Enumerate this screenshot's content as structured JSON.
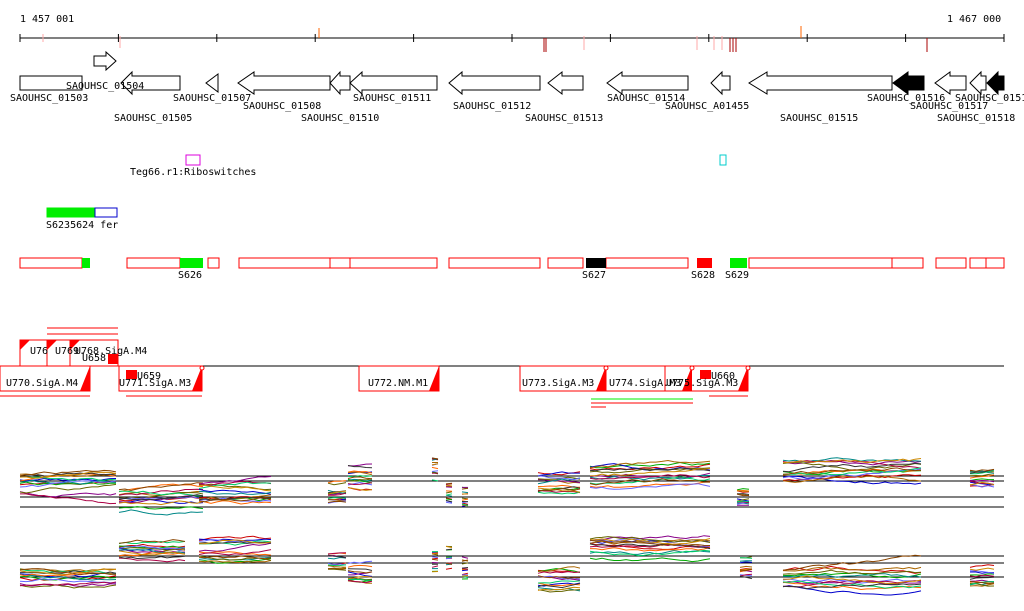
{
  "coords": {
    "start": "1 457 001",
    "end": "1 467 000"
  },
  "colors": {
    "axis": "#000000",
    "red": "#ff0000",
    "dark_red": "#aa0000",
    "pale_red": "#ffaaaa",
    "orange": "#ff6600",
    "green": "#00ee00",
    "blue": "#0000cc",
    "magenta": "#dd00dd",
    "cyan": "#00cccc",
    "black": "#000000"
  },
  "genes": [
    {
      "name": "SAOUHSC_01503",
      "strand": "none",
      "label_row": 1,
      "fill": "white"
    },
    {
      "name": "SAOUHSC_01504",
      "strand": "+",
      "label_row": 0,
      "fill": "white"
    },
    {
      "name": "SAOUHSC_01505",
      "strand": "-",
      "label_row": 2,
      "fill": "white"
    },
    {
      "name": "SAOUHSC_01507",
      "strand": "-",
      "label_row": 1,
      "fill": "white"
    },
    {
      "name": "SAOUHSC_01508",
      "strand": "-",
      "label_row": 1,
      "fill": "white"
    },
    {
      "name": "SAOUHSC_01510",
      "strand": "-",
      "label_row": 2,
      "fill": "white"
    },
    {
      "name": "SAOUHSC_01511",
      "strand": "-",
      "label_row": 1,
      "fill": "white"
    },
    {
      "name": "SAOUHSC_01512",
      "strand": "-",
      "label_row": 1,
      "fill": "white"
    },
    {
      "name": "SAOUHSC_01513",
      "strand": "-",
      "label_row": 2,
      "fill": "white"
    },
    {
      "name": "SAOUHSC_01514",
      "strand": "-",
      "label_row": 1,
      "fill": "white"
    },
    {
      "name": "SAOUHSC_A01455",
      "strand": "-",
      "label_row": 1,
      "fill": "white"
    },
    {
      "name": "SAOUHSC_01515",
      "strand": "-",
      "label_row": 2,
      "fill": "white"
    },
    {
      "name": "SAOUHSC_01516",
      "strand": "-",
      "label_row": 1,
      "fill": "black"
    },
    {
      "name": "SAOUHSC_01517",
      "strand": "-",
      "label_row": 1,
      "fill": "white"
    },
    {
      "name": "SAOUHSC_01518",
      "strand": "-",
      "label_row": 2,
      "fill": "white"
    },
    {
      "name": "SAOUHSC_0151",
      "strand": "-",
      "label_row": 1,
      "fill": "black"
    }
  ],
  "riboswitch": {
    "label": "Teg66.r1:Riboswitches"
  },
  "small_rnas": {
    "label": "S6235624 fer"
  },
  "segments": [
    "S626",
    "S627",
    "S628",
    "S629"
  ],
  "promoters": {
    "top_labels": [
      "U76",
      "U769.",
      "U768.SigA.M4",
      "U658"
    ],
    "bottom_labels": [
      "U770.SigA.M4",
      "U771.SigA.M3",
      "U772.NM.M1",
      "U773.SigA.M3",
      "U774.SigA.M3",
      "U775.SigA.M3"
    ],
    "small_labels": [
      "U659",
      "U660"
    ]
  },
  "tracks": [
    {
      "name": "expression-profile-upper"
    },
    {
      "name": "expression-profile-lower"
    }
  ]
}
